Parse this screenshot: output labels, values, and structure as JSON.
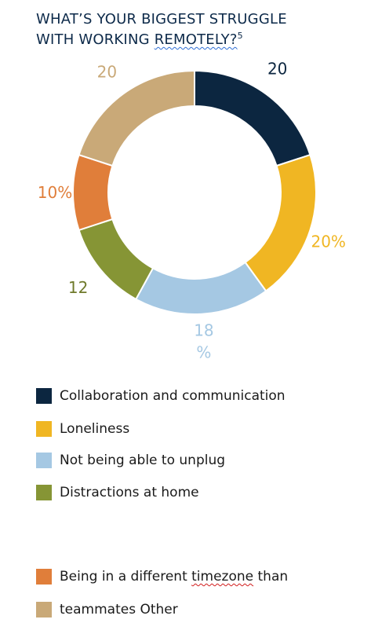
{
  "title": {
    "line1": "WHAT’S YOUR BIGGEST STRUGGLE",
    "line2_prefix": "WITH WORKING ",
    "line2_underlined": "REMOTELY?",
    "footnote": "5"
  },
  "chart_data": {
    "type": "pie",
    "variant": "donut",
    "start": "top",
    "direction": "clockwise",
    "slices": [
      {
        "value": 20,
        "color": "#0c2640",
        "label_lines": [
          "20"
        ],
        "label_color": "#0c2640"
      },
      {
        "value": 20,
        "color": "#f0b623",
        "label_lines": [
          "20%"
        ],
        "label_color": "#f0b623"
      },
      {
        "value": 18,
        "color": "#a5c8e3",
        "label_lines": [
          "18",
          "%"
        ],
        "label_color": "#a5c8e3"
      },
      {
        "value": 12,
        "color": "#869535",
        "label_lines": [
          "12"
        ],
        "label_color": "#6f7a2b"
      },
      {
        "value": 10,
        "color": "#e07e3a",
        "label_lines": [
          "10%"
        ],
        "label_color": "#e07e3a"
      },
      {
        "value": 20,
        "color": "#c9a978",
        "label_lines": [
          "20"
        ],
        "label_color": "#c9a978"
      }
    ]
  },
  "legend": [
    {
      "label": "Collaboration and communication",
      "color": "#0c2640"
    },
    {
      "label": "Loneliness",
      "color": "#f0b623"
    },
    {
      "label": "Not being able to unplug",
      "color": "#a5c8e3"
    },
    {
      "label": "Distractions at home",
      "color": "#869535"
    },
    {
      "label_before": "Being in a different ",
      "label_flagged": "timezone",
      "label_after": " than",
      "color": "#e07e3a"
    },
    {
      "label": "teammates Other",
      "color": "#c9a978"
    }
  ]
}
